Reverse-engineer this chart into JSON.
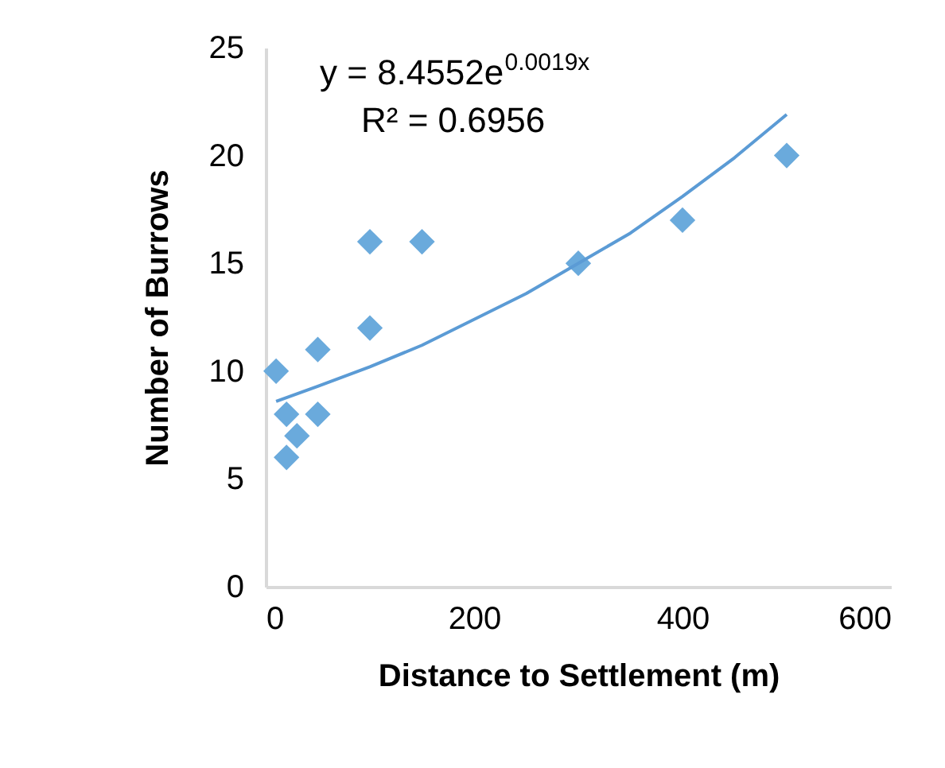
{
  "chart_data": {
    "type": "scatter",
    "xlabel": "Distance to Settlement (m)",
    "ylabel": "Number of Burrows",
    "xlim": [
      0,
      600
    ],
    "xticks": [
      0,
      200,
      400,
      600
    ],
    "ylim": [
      0,
      25
    ],
    "yticks": [
      0,
      5,
      10,
      15,
      20,
      25
    ],
    "grid": false,
    "marker": "diamond",
    "annotations": [
      "y = 8.4552e$^{0.0019x}$",
      "R² = 0.6956"
    ],
    "series": [
      {
        "color": "#6aaadc",
        "x": [
          10,
          20,
          20,
          30,
          50,
          50,
          100,
          100,
          150,
          300,
          400,
          500
        ],
        "values": [
          10,
          8,
          6,
          7,
          11,
          8,
          12,
          16,
          16,
          15,
          17,
          20
        ]
      },
      {
        "type": "line",
        "color": "#5b9bd5",
        "line_style": "solid",
        "marker": "none",
        "x": [
          10,
          50,
          100,
          150,
          200,
          250,
          300,
          350,
          400,
          450,
          500
        ],
        "values": [
          8.6,
          9.3,
          10.2,
          11.2,
          12.4,
          13.6,
          15.0,
          16.4,
          18.1,
          19.9,
          21.9
        ]
      }
    ]
  }
}
